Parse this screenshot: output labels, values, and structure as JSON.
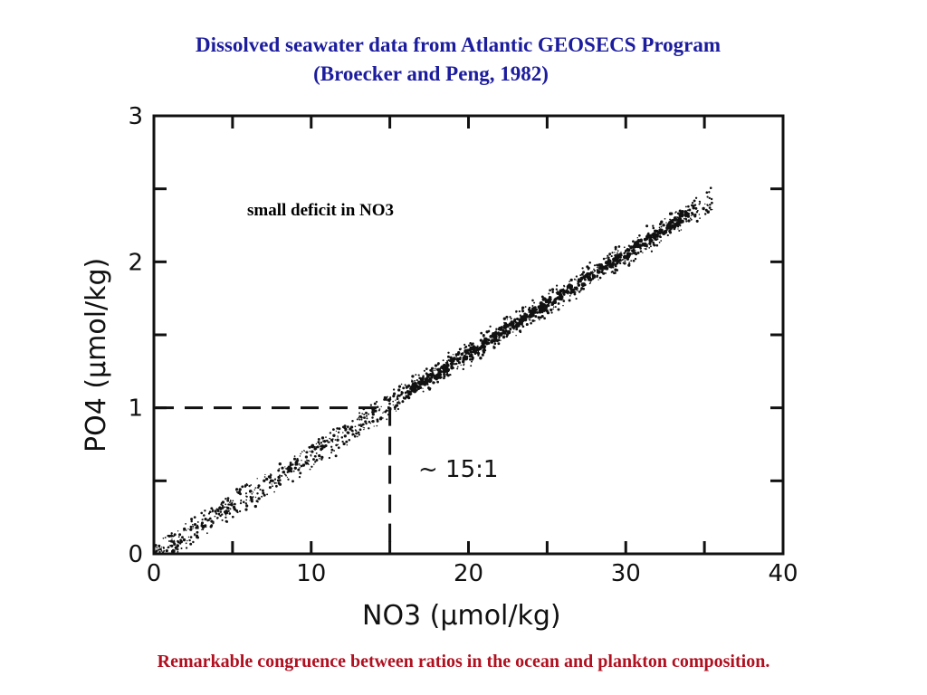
{
  "slide": {
    "title_line1": "Dissolved seawater data from Atlantic GEOSECS Program",
    "title_line2": "(Broecker and Peng, 1982)",
    "annotation": "small deficit in NO3",
    "caption": "Remarkable congruence between ratios in the ocean and plankton composition.",
    "title_color": "#1c1c9e",
    "caption_color": "#b01020"
  },
  "chart_data": {
    "type": "scatter",
    "xlabel": "NO3 (μmol/kg)",
    "ylabel": "PO4 (μmol/kg)",
    "xlim": [
      0,
      40
    ],
    "ylim": [
      0,
      3
    ],
    "x_ticks": [
      "0",
      "10",
      "20",
      "30",
      "40"
    ],
    "y_ticks": [
      "0",
      "1",
      "2",
      "3"
    ],
    "grid": false,
    "ratio_label": "~ 15:1",
    "reference_point": {
      "x": 15,
      "y": 1
    },
    "trend": {
      "x": [
        0,
        35
      ],
      "y": [
        0,
        2.4
      ]
    },
    "point_clusters": [
      {
        "x_range": [
          0,
          15
        ],
        "y_range": [
          0.0,
          1.0
        ]
      },
      {
        "x_range": [
          15,
          25
        ],
        "y_range": [
          1.0,
          1.65
        ]
      },
      {
        "x_range": [
          25,
          35
        ],
        "y_range": [
          1.65,
          2.45
        ]
      }
    ]
  }
}
